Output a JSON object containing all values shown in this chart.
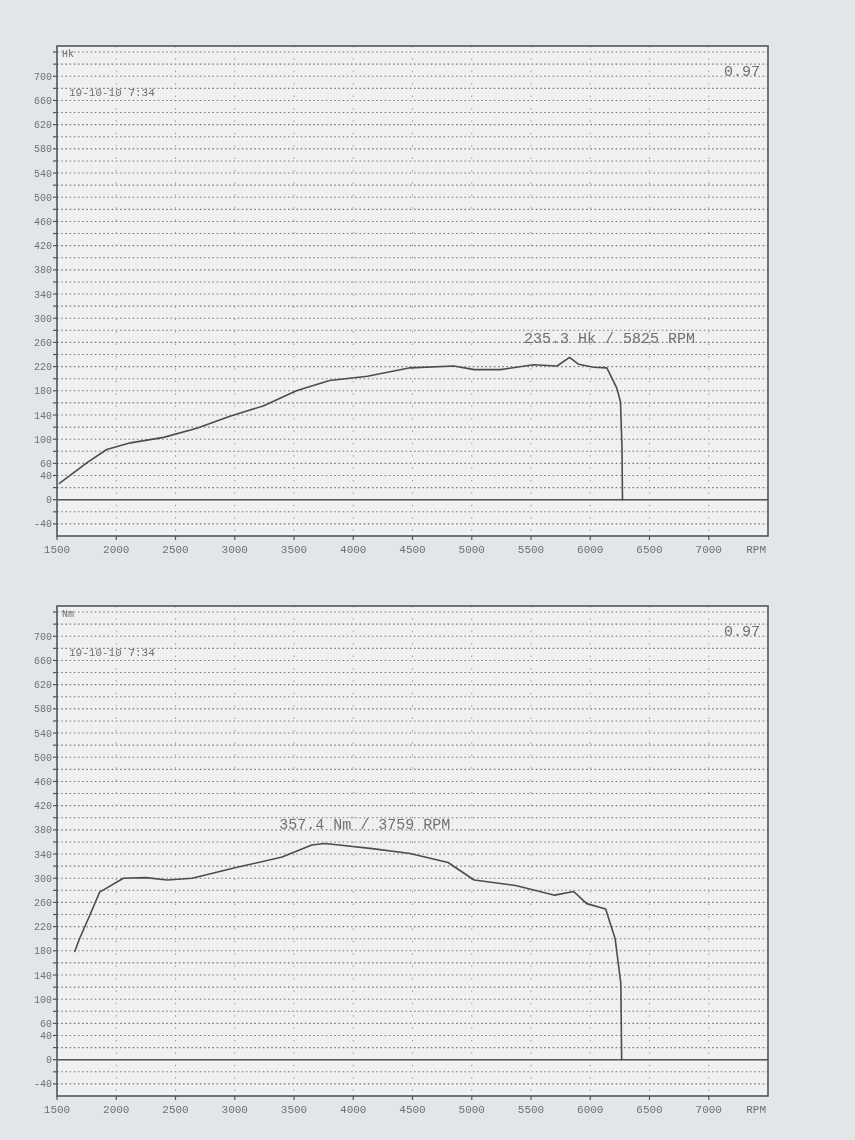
{
  "chart_data": [
    {
      "type": "line",
      "ylabel": "Hk",
      "xlabel": "RPM",
      "annotations": [
        "19-10-10 7:34",
        "0.97",
        {
          "text": "235.3 Hk / 5825 RPM",
          "x": 5825,
          "y": 235.3
        }
      ],
      "x": [
        1520,
        1760,
        1920,
        2120,
        2400,
        2680,
        2960,
        3240,
        3520,
        3800,
        4120,
        4480,
        4850,
        5020,
        5240,
        5520,
        5720,
        5825,
        5900,
        6030,
        6140,
        6185,
        6225,
        6255,
        6268,
        6272
      ],
      "series": [
        {
          "color": "#4d4d4d",
          "values": [
            27,
            62,
            83,
            94,
            103,
            118,
            138,
            155,
            180,
            197,
            204,
            218,
            221,
            215,
            215,
            223,
            221,
            235.3,
            224,
            219,
            218,
            200,
            184,
            162,
            85,
            0
          ]
        }
      ],
      "xlim": [
        1500,
        7500
      ],
      "ylim": [
        -60,
        750
      ],
      "xticks": [
        1500,
        2000,
        2500,
        3000,
        3500,
        4000,
        4500,
        5000,
        5500,
        6000,
        6500,
        7000
      ],
      "yticks": [
        -40,
        {
          "value": -20,
          "label": null
        },
        0,
        {
          "value": 20,
          "label": null
        },
        40,
        60,
        {
          "value": 80,
          "label": null
        },
        100,
        {
          "value": 120,
          "label": null
        },
        140,
        {
          "value": 160,
          "label": null
        },
        180,
        {
          "value": 200,
          "label": null
        },
        220,
        {
          "value": 240,
          "label": null
        },
        260,
        {
          "value": 280,
          "label": null
        },
        300,
        {
          "value": 320,
          "label": null
        },
        340,
        {
          "value": 360,
          "label": null
        },
        380,
        {
          "value": 400,
          "label": null
        },
        420,
        {
          "value": 440,
          "label": null
        },
        460,
        {
          "value": 480,
          "label": null
        },
        500,
        {
          "value": 520,
          "label": null
        },
        540,
        {
          "value": 560,
          "label": null
        },
        580,
        {
          "value": 600,
          "label": null
        },
        620,
        {
          "value": 640,
          "label": null
        },
        660,
        {
          "value": 680,
          "label": null
        },
        700,
        {
          "value": 720,
          "label": null
        },
        {
          "value": 740,
          "label": null
        }
      ],
      "grid": true
    },
    {
      "type": "line",
      "ylabel": "Nm",
      "xlabel": "RPM",
      "annotations": [
        "19-10-10 7:34",
        "0.97",
        {
          "text": "357.4 Nm / 3759 RPM",
          "x": 3759,
          "y": 357.4
        }
      ],
      "x": [
        1650,
        1690,
        1775,
        1860,
        2060,
        2250,
        2430,
        2640,
        3020,
        3400,
        3650,
        3759,
        3880,
        4160,
        4480,
        4800,
        5020,
        5370,
        5700,
        5860,
        5970,
        6130,
        6210,
        6258,
        6265
      ],
      "series": [
        {
          "color": "#4d4d4d",
          "values": [
            179,
            200,
            238,
            277,
            300,
            301,
            297,
            300,
            318,
            335,
            355,
            357.4,
            355,
            349,
            341,
            326,
            297,
            288,
            272,
            278,
            258,
            249,
            200,
            126,
            0
          ]
        }
      ],
      "xlim": [
        1500,
        7500
      ],
      "ylim": [
        -60,
        750
      ],
      "xticks": [
        1500,
        2000,
        2500,
        3000,
        3500,
        4000,
        4500,
        5000,
        5500,
        6000,
        6500,
        7000
      ],
      "yticks": [
        -40,
        {
          "value": -20,
          "label": null
        },
        0,
        {
          "value": 20,
          "label": null
        },
        40,
        60,
        {
          "value": 80,
          "label": null
        },
        100,
        {
          "value": 120,
          "label": null
        },
        140,
        {
          "value": 160,
          "label": null
        },
        180,
        {
          "value": 200,
          "label": null
        },
        220,
        {
          "value": 240,
          "label": null
        },
        260,
        {
          "value": 280,
          "label": null
        },
        300,
        {
          "value": 320,
          "label": null
        },
        340,
        {
          "value": 360,
          "label": null
        },
        380,
        {
          "value": 400,
          "label": null
        },
        420,
        {
          "value": 440,
          "label": null
        },
        460,
        {
          "value": 480,
          "label": null
        },
        500,
        {
          "value": 520,
          "label": null
        },
        540,
        {
          "value": 560,
          "label": null
        },
        580,
        {
          "value": 600,
          "label": null
        },
        620,
        {
          "value": 640,
          "label": null
        },
        660,
        {
          "value": 680,
          "label": null
        },
        700,
        {
          "value": 720,
          "label": null
        },
        {
          "value": 740,
          "label": null
        }
      ],
      "grid": true
    }
  ]
}
